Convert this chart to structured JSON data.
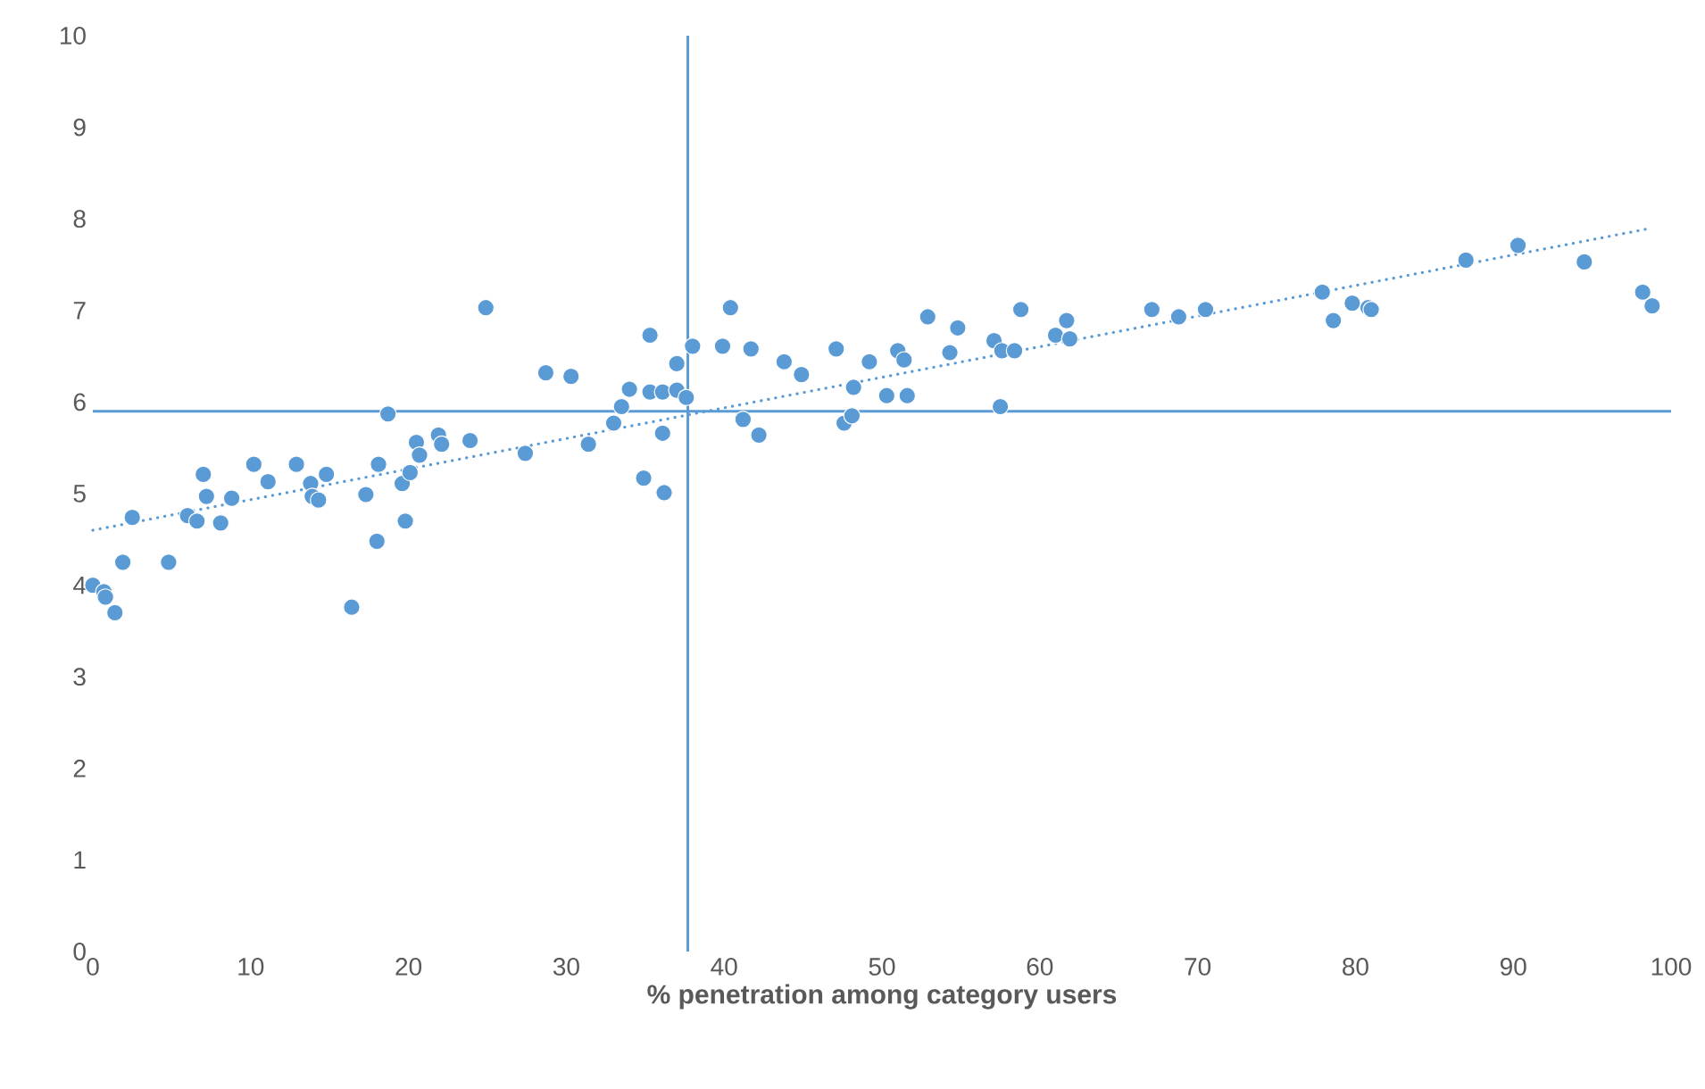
{
  "chart_data": {
    "type": "scatter",
    "xlabel": "% penetration among category users",
    "xlim": [
      0,
      100
    ],
    "xticks": [
      0,
      10,
      20,
      30,
      40,
      50,
      60,
      70,
      80,
      90,
      100
    ],
    "ylim": [
      0,
      10
    ],
    "yticks": [
      0,
      1,
      2,
      3,
      4,
      5,
      6,
      7,
      8,
      9,
      10
    ],
    "ref_lines": [
      {
        "axis": "x",
        "value": 37.7,
        "color": "#5b9bd5"
      },
      {
        "axis": "y",
        "value": 5.9,
        "color": "#5b9bd5"
      }
    ],
    "series": [
      {
        "type": "scatter",
        "color": "#5b9bd5",
        "marker": "circle",
        "x": [
          0.0,
          0.7,
          0.8,
          1.4,
          1.9,
          2.5,
          4.8,
          6.0,
          6.6,
          7.0,
          7.2,
          8.1,
          8.8,
          10.2,
          11.1,
          12.9,
          13.8,
          13.9,
          14.3,
          14.8,
          16.4,
          17.3,
          18.0,
          18.1,
          18.7,
          19.6,
          19.8,
          20.1,
          20.5,
          20.7,
          21.9,
          22.1,
          23.9,
          24.9,
          27.4,
          28.7,
          30.3,
          31.4,
          33.0,
          33.5,
          34.0,
          34.9,
          35.3,
          35.3,
          36.1,
          36.1,
          36.2,
          37.0,
          37.0,
          37.6,
          38.0,
          39.9,
          40.4,
          41.2,
          41.7,
          42.2,
          43.8,
          44.9,
          47.1,
          47.6,
          48.1,
          48.2,
          49.2,
          50.3,
          51.0,
          51.4,
          51.6,
          52.9,
          54.3,
          54.8,
          57.1,
          57.5,
          57.6,
          58.4,
          58.8,
          61.0,
          61.7,
          61.9,
          67.1,
          68.8,
          70.5,
          77.9,
          78.6,
          79.8,
          80.8,
          81.0,
          87.0,
          90.3,
          94.5,
          98.2,
          98.8
        ],
        "values": [
          4.0,
          3.93,
          3.87,
          3.7,
          4.25,
          4.74,
          4.25,
          4.76,
          4.7,
          5.21,
          4.97,
          4.68,
          4.95,
          5.32,
          5.13,
          5.32,
          5.11,
          4.97,
          4.93,
          5.21,
          3.76,
          4.99,
          4.48,
          5.32,
          5.87,
          5.11,
          4.7,
          5.23,
          5.56,
          5.42,
          5.64,
          5.54,
          5.58,
          7.03,
          5.44,
          6.32,
          6.28,
          5.54,
          5.77,
          5.95,
          6.14,
          5.17,
          6.73,
          6.11,
          6.11,
          5.66,
          5.01,
          6.42,
          6.13,
          6.05,
          6.61,
          6.61,
          7.03,
          5.81,
          6.58,
          5.64,
          6.44,
          6.3,
          6.58,
          5.77,
          5.85,
          6.16,
          6.44,
          6.07,
          6.56,
          6.46,
          6.07,
          6.93,
          6.54,
          6.81,
          6.67,
          5.95,
          6.56,
          6.56,
          7.01,
          6.73,
          6.89,
          6.69,
          7.01,
          6.93,
          7.01,
          7.2,
          6.89,
          7.08,
          7.03,
          7.01,
          7.55,
          7.71,
          7.53,
          7.2,
          7.05
        ]
      },
      {
        "type": "line",
        "color": "#5b9bd5",
        "line_style": "dotted",
        "marker": "none",
        "x": [
          0,
          98.8
        ],
        "values": [
          4.6,
          7.9
        ]
      }
    ]
  }
}
